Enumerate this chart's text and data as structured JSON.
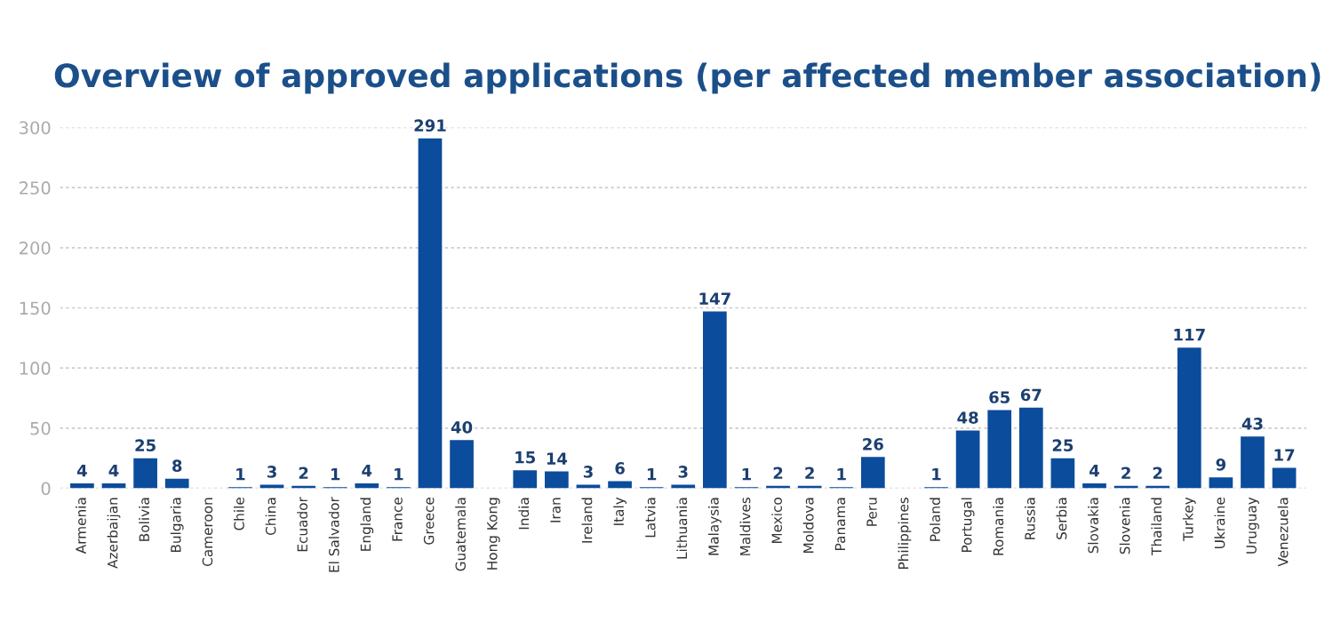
{
  "chart_data": {
    "type": "bar",
    "title": "Overview of approved applications (per affected member association)",
    "categories": [
      "Armenia",
      "Azerbaijan",
      "Bolivia",
      "Bulgaria",
      "Cameroon",
      "Chile",
      "China",
      "Ecuador",
      "El Salvador",
      "England",
      "France",
      "Greece",
      "Guatemala",
      "Hong Kong",
      "India",
      "Iran",
      "Ireland",
      "Italy",
      "Latvia",
      "Lithuania",
      "Malaysia",
      "Maldives",
      "Mexico",
      "Moldova",
      "Panama",
      "Peru",
      "Philippines",
      "Poland",
      "Portugal",
      "Romania",
      "Russia",
      "Serbia",
      "Slovakia",
      "Slovenia",
      "Thailand",
      "Turkey",
      "Ukraine",
      "Uruguay",
      "Venezuela"
    ],
    "values": [
      4,
      4,
      25,
      8,
      0,
      1,
      3,
      2,
      1,
      4,
      1,
      291,
      40,
      0,
      15,
      14,
      3,
      6,
      1,
      3,
      147,
      1,
      2,
      2,
      1,
      26,
      0,
      1,
      48,
      65,
      67,
      25,
      4,
      2,
      2,
      117,
      9,
      43,
      17
    ],
    "value_labels": [
      "4",
      "4",
      "25",
      "8",
      null,
      "1",
      "3",
      "2",
      "1",
      "4",
      "1",
      "291",
      "40",
      null,
      "15",
      "14",
      "3",
      "6",
      "1",
      "3",
      "147",
      "1",
      "2",
      "2",
      "1",
      "26",
      null,
      "1",
      "48",
      "65",
      "67",
      "25",
      "4",
      "2",
      "2",
      "117",
      "9",
      "43",
      "17"
    ],
    "color": "#0b4c9c",
    "ylim": [
      0,
      300
    ],
    "yticks": [
      0,
      50,
      100,
      150,
      200,
      250,
      300
    ],
    "grid": "y",
    "legend": false
  }
}
